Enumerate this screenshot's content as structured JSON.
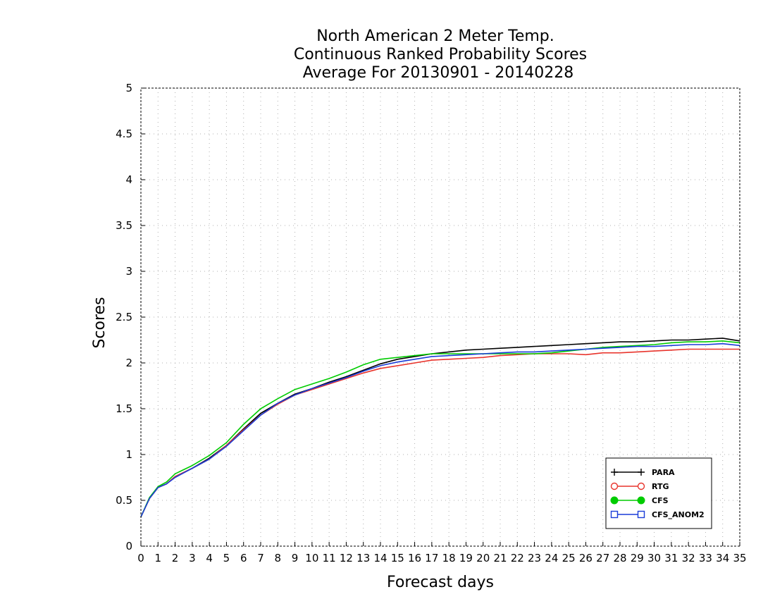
{
  "chart_data": {
    "type": "line",
    "title_lines": [
      "North American 2 Meter Temp.",
      "Continuous Ranked Probability Scores",
      "Average For 20130901 - 20140228"
    ],
    "xlabel": "Forecast days",
    "ylabel": "Scores",
    "xlim": [
      0,
      35
    ],
    "ylim": [
      0,
      5
    ],
    "xticks": [
      "0",
      "1",
      "2",
      "3",
      "4",
      "5",
      "6",
      "7",
      "8",
      "9",
      "10",
      "11",
      "12",
      "13",
      "14",
      "15",
      "16",
      "17",
      "18",
      "19",
      "20",
      "21",
      "22",
      "23",
      "24",
      "25",
      "26",
      "27",
      "28",
      "29",
      "30",
      "31",
      "32",
      "33",
      "34",
      "35"
    ],
    "yticks": [
      "0",
      "0.5",
      "1",
      "1.5",
      "2",
      "2.5",
      "3",
      "3.5",
      "4",
      "4.5",
      "5"
    ],
    "grid": true,
    "legend_position": "bottom-right",
    "x": [
      0,
      0.5,
      1,
      1.5,
      2,
      3,
      4,
      5,
      6,
      7,
      8,
      9,
      10,
      11,
      12,
      13,
      14,
      15,
      16,
      17,
      18,
      19,
      20,
      21,
      22,
      23,
      24,
      25,
      26,
      27,
      28,
      29,
      30,
      31,
      32,
      33,
      34,
      35
    ],
    "series": [
      {
        "name": "PARA",
        "color": "#000000",
        "marker": "plus",
        "values": [
          0.32,
          0.52,
          0.64,
          0.68,
          0.76,
          0.85,
          0.96,
          1.1,
          1.28,
          1.45,
          1.56,
          1.66,
          1.72,
          1.79,
          1.85,
          1.92,
          1.99,
          2.04,
          2.07,
          2.1,
          2.12,
          2.14,
          2.15,
          2.16,
          2.17,
          2.18,
          2.19,
          2.2,
          2.21,
          2.22,
          2.23,
          2.23,
          2.24,
          2.25,
          2.25,
          2.26,
          2.27,
          2.24
        ]
      },
      {
        "name": "RTG",
        "color": "#e8342c",
        "marker": "circle-open",
        "values": [
          0.32,
          0.52,
          0.64,
          0.68,
          0.76,
          0.85,
          0.95,
          1.1,
          1.27,
          1.43,
          1.55,
          1.65,
          1.71,
          1.77,
          1.83,
          1.89,
          1.94,
          1.97,
          2.0,
          2.03,
          2.04,
          2.05,
          2.06,
          2.08,
          2.09,
          2.1,
          2.1,
          2.1,
          2.09,
          2.11,
          2.11,
          2.12,
          2.13,
          2.14,
          2.15,
          2.15,
          2.15,
          2.15
        ]
      },
      {
        "name": "CFS",
        "color": "#00cc00",
        "marker": "circle-filled",
        "values": [
          0.32,
          0.53,
          0.65,
          0.7,
          0.79,
          0.88,
          0.99,
          1.13,
          1.33,
          1.5,
          1.61,
          1.71,
          1.77,
          1.83,
          1.9,
          1.98,
          2.04,
          2.06,
          2.08,
          2.1,
          2.1,
          2.1,
          2.1,
          2.1,
          2.1,
          2.1,
          2.11,
          2.13,
          2.15,
          2.17,
          2.18,
          2.19,
          2.2,
          2.22,
          2.23,
          2.23,
          2.24,
          2.22
        ]
      },
      {
        "name": "CFS_ANOM2",
        "color": "#1a3cd8",
        "marker": "square-open",
        "values": [
          0.32,
          0.52,
          0.64,
          0.68,
          0.75,
          0.85,
          0.95,
          1.09,
          1.26,
          1.43,
          1.56,
          1.65,
          1.72,
          1.78,
          1.84,
          1.91,
          1.97,
          2.01,
          2.04,
          2.07,
          2.08,
          2.09,
          2.1,
          2.11,
          2.12,
          2.12,
          2.13,
          2.14,
          2.15,
          2.16,
          2.17,
          2.18,
          2.18,
          2.19,
          2.2,
          2.2,
          2.21,
          2.19
        ]
      }
    ]
  }
}
